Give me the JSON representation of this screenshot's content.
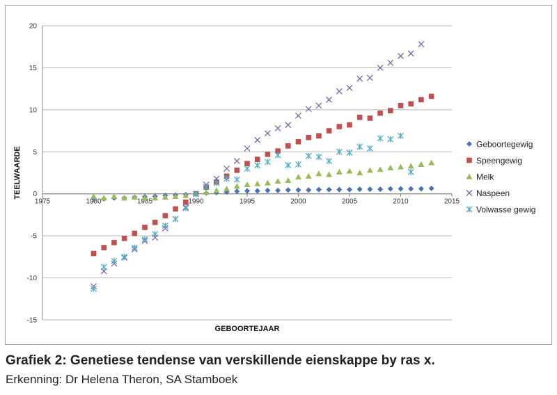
{
  "caption": {
    "title": "Grafiek 2: Genetiese tendense van verskillende eienskappe by ras x.",
    "credit": "Erkenning: Dr Helena Theron, SA Stamboek"
  },
  "chart_data": {
    "type": "scatter",
    "xlabel": "GEBOORTEJAAR",
    "ylabel": "TEELWAARDE",
    "xlim": [
      1975,
      2015
    ],
    "ylim": [
      -15,
      20
    ],
    "xticks": [
      1975,
      1980,
      1985,
      1990,
      1995,
      2000,
      2005,
      2010,
      2015
    ],
    "yticks": [
      -15,
      -10,
      -5,
      0,
      5,
      10,
      15,
      20
    ],
    "grid": "horizontal",
    "legend_position": "right",
    "series": [
      {
        "name": "Geboortegewig",
        "marker": "diamond",
        "color": "#4a72b8",
        "x": [
          1980,
          1981,
          1982,
          1983,
          1984,
          1985,
          1986,
          1987,
          1988,
          1989,
          1990,
          1991,
          1992,
          1993,
          1994,
          1995,
          1996,
          1997,
          1998,
          1999,
          2000,
          2001,
          2002,
          2003,
          2004,
          2005,
          2006,
          2007,
          2008,
          2009,
          2010,
          2011,
          2012,
          2013
        ],
        "y": [
          -0.6,
          -0.6,
          -0.5,
          -0.5,
          -0.4,
          -0.35,
          -0.3,
          -0.2,
          -0.15,
          -0.1,
          0,
          0.1,
          0.15,
          0.2,
          0.3,
          0.35,
          0.35,
          0.4,
          0.4,
          0.45,
          0.45,
          0.45,
          0.5,
          0.5,
          0.5,
          0.5,
          0.55,
          0.55,
          0.55,
          0.6,
          0.6,
          0.6,
          0.6,
          0.65
        ]
      },
      {
        "name": "Speengewig",
        "marker": "square",
        "color": "#c0504d",
        "x": [
          1980,
          1981,
          1982,
          1983,
          1984,
          1985,
          1986,
          1987,
          1988,
          1989,
          1990,
          1991,
          1992,
          1993,
          1994,
          1995,
          1996,
          1997,
          1998,
          1999,
          2000,
          2001,
          2002,
          2003,
          2004,
          2005,
          2006,
          2007,
          2008,
          2009,
          2010,
          2011,
          2012,
          2013
        ],
        "y": [
          -7.1,
          -6.4,
          -5.8,
          -5.3,
          -4.7,
          -4.0,
          -3.4,
          -2.6,
          -1.8,
          -1.0,
          0,
          0.8,
          1.4,
          2.1,
          2.8,
          3.6,
          4.1,
          4.7,
          5.1,
          5.7,
          6.2,
          6.7,
          6.9,
          7.5,
          8.0,
          8.2,
          9.1,
          9.0,
          9.6,
          9.9,
          10.5,
          10.7,
          11.2,
          11.6
        ]
      },
      {
        "name": "Melk",
        "marker": "triangle",
        "color": "#9bbb59",
        "x": [
          1980,
          1981,
          1982,
          1983,
          1984,
          1985,
          1986,
          1987,
          1988,
          1989,
          1990,
          1991,
          1992,
          1993,
          1994,
          1995,
          1996,
          1997,
          1998,
          1999,
          2000,
          2001,
          2002,
          2003,
          2004,
          2005,
          2006,
          2007,
          2008,
          2009,
          2010,
          2011,
          2012,
          2013
        ],
        "y": [
          -0.3,
          -0.5,
          -0.3,
          -0.5,
          -0.4,
          -0.5,
          -0.5,
          -0.4,
          -0.3,
          -0.2,
          0,
          0.2,
          0.4,
          0.6,
          0.9,
          1.1,
          1.2,
          1.3,
          1.5,
          1.6,
          2.0,
          2.1,
          2.4,
          2.3,
          2.6,
          2.7,
          2.5,
          2.8,
          2.9,
          3.1,
          3.2,
          3.3,
          3.5,
          3.7
        ]
      },
      {
        "name": "Naspeen",
        "marker": "x",
        "color": "#8064a2",
        "x": [
          1980,
          1981,
          1982,
          1983,
          1984,
          1985,
          1986,
          1987,
          1988,
          1989,
          1990,
          1991,
          1992,
          1993,
          1994,
          1995,
          1996,
          1997,
          1998,
          1999,
          2000,
          2001,
          2002,
          2003,
          2004,
          2005,
          2006,
          2007,
          2008,
          2009,
          2010,
          2011,
          2012
        ],
        "y": [
          -11.0,
          -9.2,
          -8.3,
          -7.6,
          -6.6,
          -5.6,
          -5.2,
          -4.1,
          -3.0,
          -1.6,
          0,
          1.1,
          1.8,
          3.0,
          3.9,
          5.4,
          6.4,
          7.2,
          7.8,
          8.2,
          9.3,
          10.1,
          10.5,
          11.2,
          12.2,
          12.6,
          13.7,
          13.8,
          15.0,
          15.6,
          16.4,
          16.7,
          17.8
        ]
      },
      {
        "name": "Volwasse gewig",
        "marker": "asterisk",
        "color": "#4bacc6",
        "x": [
          1980,
          1981,
          1982,
          1983,
          1984,
          1985,
          1986,
          1987,
          1988,
          1989,
          1990,
          1991,
          1992,
          1993,
          1994,
          1995,
          1996,
          1997,
          1998,
          1999,
          2000,
          2001,
          2002,
          2003,
          2004,
          2005,
          2006,
          2007,
          2008,
          2009,
          2010,
          2011
        ],
        "y": [
          -11.3,
          -8.7,
          -8.0,
          -7.5,
          -6.4,
          -5.4,
          -4.8,
          -3.8,
          -3.0,
          -1.7,
          0,
          0.8,
          1.3,
          1.8,
          1.7,
          3.0,
          3.4,
          3.8,
          4.6,
          3.4,
          3.5,
          4.5,
          4.4,
          3.9,
          5.0,
          4.9,
          5.6,
          5.4,
          6.6,
          6.5,
          6.9,
          2.6
        ]
      }
    ]
  }
}
